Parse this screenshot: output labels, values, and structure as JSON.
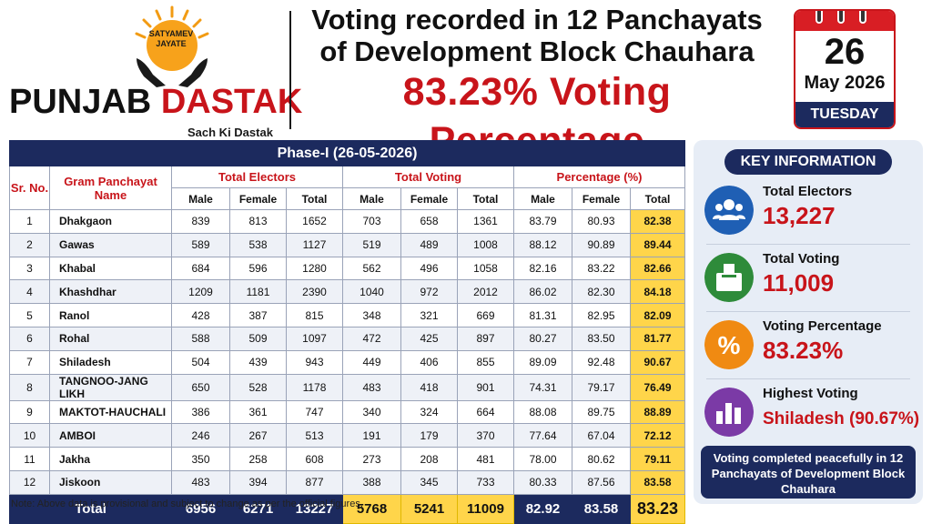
{
  "logo": {
    "seal_text": "SATYAMEV JAYATE",
    "brand_part1": "PUNJAB",
    "brand_part2": "DASTAK",
    "tagline": "Sach Ki Dastak"
  },
  "headline": {
    "line1": "Voting recorded in 12 Panchayats",
    "line2": "of Development Block Chauhara",
    "line3": "83.23% Voting Percentage"
  },
  "calendar": {
    "day": "26",
    "month_year": "May 2026",
    "weekday": "TUESDAY"
  },
  "table": {
    "phase_title": "Phase-I (26-05-2026)",
    "sr_header": "Sr. No.",
    "name_header": "Gram Panchayat Name",
    "group_electors": "Total Electors",
    "group_voting": "Total Voting",
    "group_percentage": "Percentage (%)",
    "sub_male": "Male",
    "sub_female": "Female",
    "sub_total": "Total",
    "rows": [
      [
        "1",
        "Dhakgaon",
        "839",
        "813",
        "1652",
        "703",
        "658",
        "1361",
        "83.79",
        "80.93",
        "82.38"
      ],
      [
        "2",
        "Gawas",
        "589",
        "538",
        "1127",
        "519",
        "489",
        "1008",
        "88.12",
        "90.89",
        "89.44"
      ],
      [
        "3",
        "Khabal",
        "684",
        "596",
        "1280",
        "562",
        "496",
        "1058",
        "82.16",
        "83.22",
        "82.66"
      ],
      [
        "4",
        "Khashdhar",
        "1209",
        "1181",
        "2390",
        "1040",
        "972",
        "2012",
        "86.02",
        "82.30",
        "84.18"
      ],
      [
        "5",
        "Ranol",
        "428",
        "387",
        "815",
        "348",
        "321",
        "669",
        "81.31",
        "82.95",
        "82.09"
      ],
      [
        "6",
        "Rohal",
        "588",
        "509",
        "1097",
        "472",
        "425",
        "897",
        "80.27",
        "83.50",
        "81.77"
      ],
      [
        "7",
        "Shiladesh",
        "504",
        "439",
        "943",
        "449",
        "406",
        "855",
        "89.09",
        "92.48",
        "90.67"
      ],
      [
        "8",
        "TANGNOO-JANG LIKH",
        "650",
        "528",
        "1178",
        "483",
        "418",
        "901",
        "74.31",
        "79.17",
        "76.49"
      ],
      [
        "9",
        "MAKTOT-HAUCHALI",
        "386",
        "361",
        "747",
        "340",
        "324",
        "664",
        "88.08",
        "89.75",
        "88.89"
      ],
      [
        "10",
        "AMBOI",
        "246",
        "267",
        "513",
        "191",
        "179",
        "370",
        "77.64",
        "67.04",
        "72.12"
      ],
      [
        "11",
        "Jakha",
        "350",
        "258",
        "608",
        "273",
        "208",
        "481",
        "78.00",
        "80.62",
        "79.11"
      ],
      [
        "12",
        "Jiskoon",
        "483",
        "394",
        "877",
        "388",
        "345",
        "733",
        "80.33",
        "87.56",
        "83.58"
      ]
    ],
    "total": {
      "label": "Total",
      "electors_male": "6956",
      "electors_female": "6271",
      "electors_total": "13227",
      "voting_male": "5768",
      "voting_female": "5241",
      "voting_total": "11009",
      "pct_male": "82.92",
      "pct_female": "83.58",
      "pct_total": "83.23"
    }
  },
  "note": "Note: Above data is provisional and subject to change as per the official figures.",
  "key_info": {
    "title": "KEY INFORMATION",
    "items": [
      {
        "label": "Total Electors",
        "value": "13,227",
        "icon": "people-icon",
        "color": "#1f5fb4"
      },
      {
        "label": "Total Voting",
        "value": "11,009",
        "icon": "ballot-box-icon",
        "color": "#2e8b3a"
      },
      {
        "label": "Voting Percentage",
        "value": "83.23%",
        "icon": "percent-icon",
        "color": "#f08a12"
      },
      {
        "label": "Highest Voting",
        "value": "Shiladesh (90.67%)",
        "icon": "bar-chart-icon",
        "color": "#7b3aa6"
      }
    ],
    "footer": "Voting completed peacefully in 12 Panchayats of Development Block Chauhara"
  },
  "colors": {
    "navy": "#1c2a5e",
    "red": "#c8141a",
    "highlight": "#ffd54a"
  }
}
